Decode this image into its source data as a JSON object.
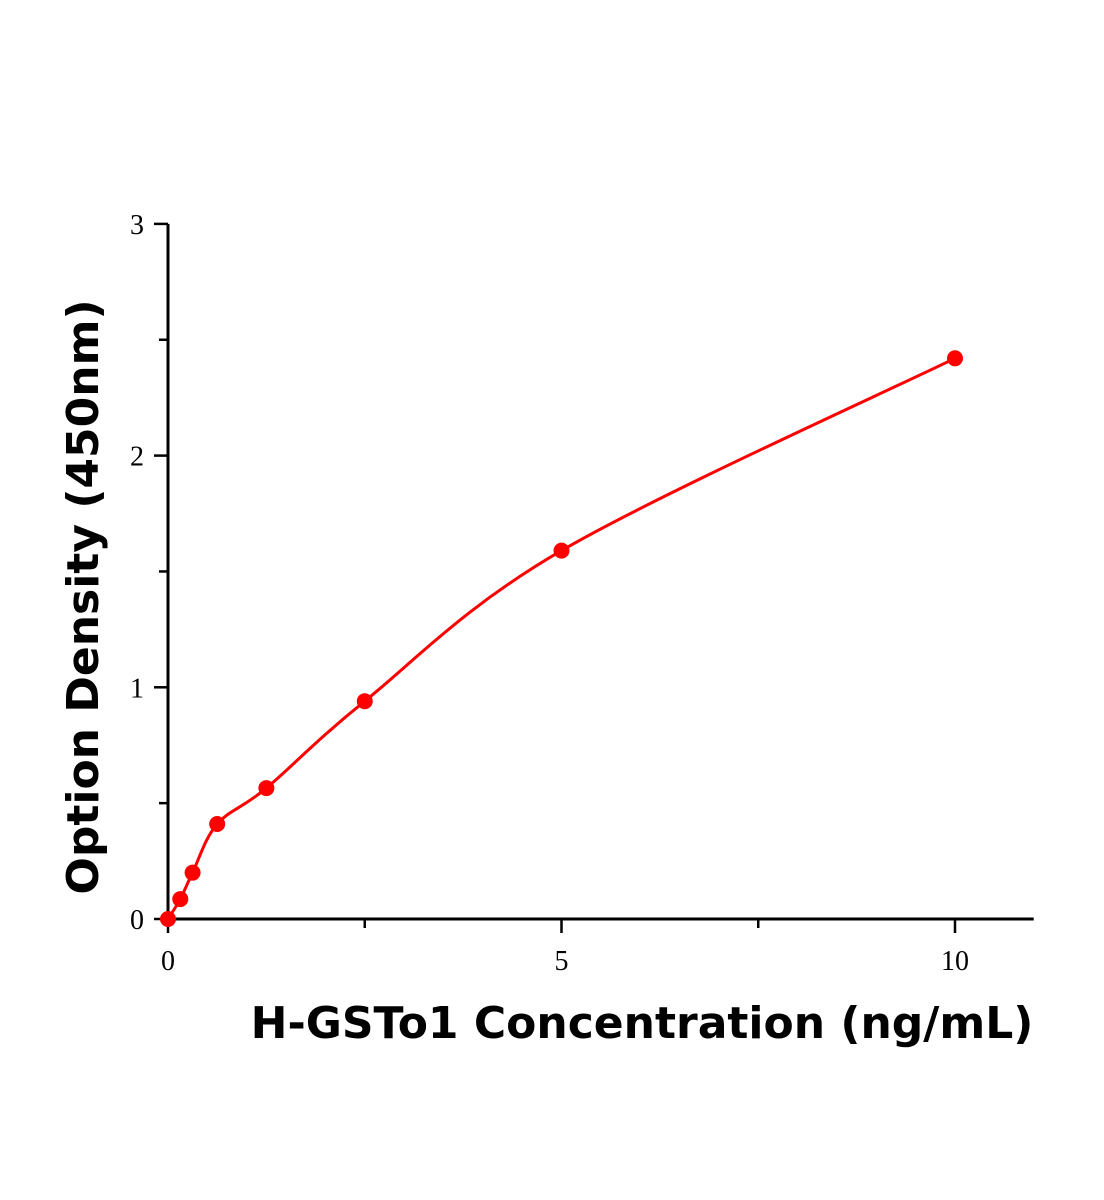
{
  "chart_data": {
    "type": "scatter",
    "title": "",
    "xlabel": "H-GSTo1 Concentration (ng/mL)",
    "ylabel": "Option Density (450nm)",
    "xlim": [
      0,
      11
    ],
    "ylim": [
      0,
      3
    ],
    "xticks": [
      "0",
      "5",
      "10"
    ],
    "yticks": [
      "0",
      "1",
      "2",
      "3"
    ],
    "grid": false,
    "color": "#ff0000",
    "series": [
      {
        "x": [
          0,
          0.156,
          0.3125,
          0.625,
          1.25,
          2.5,
          5,
          10
        ],
        "y": [
          0.0,
          0.086,
          0.2,
          0.41,
          0.565,
          0.94,
          1.59,
          2.42
        ],
        "fit_line": true
      }
    ]
  }
}
